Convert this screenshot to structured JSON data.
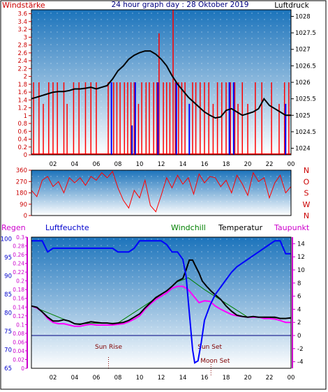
{
  "header": {
    "left_label": "Windstärke",
    "title": "24 hour graph day : 28 Oktober 2019",
    "right_label": "Luftdruck"
  },
  "colors": {
    "wind": "#ff0000",
    "wind_max": "#0000ff",
    "pressure": "#000000",
    "humidity": "#0000ff",
    "windchill": "#008000",
    "temperature": "#000000",
    "dewpoint": "#ff00ff",
    "rain": "#ff00ff",
    "freezing_line": "#000080",
    "sky_top": "#1b73bb",
    "sky_bottom": "#ffffff"
  },
  "chart_data": [
    {
      "type": "bar",
      "name": "wind-pressure",
      "left_axis_label": "Windstärke",
      "right_axis_label": "Luftdruck",
      "x_ticks": [
        "02",
        "04",
        "06",
        "08",
        "10",
        "12",
        "14",
        "16",
        "18",
        "20",
        "22",
        "00"
      ],
      "wind_ylim": [
        0,
        3.7
      ],
      "wind_ticks": [
        "0",
        "0.2",
        "0.4",
        "0.6",
        "0.8",
        "1",
        "1.2",
        "1.4",
        "1.6",
        "1.8",
        "2",
        "2.2",
        "2.4",
        "2.6",
        "2.8",
        "3",
        "3.2",
        "3.4",
        "3.6"
      ],
      "pressure_ylim": [
        1023.8,
        1028.2
      ],
      "pressure_ticks": [
        "1024",
        "1024.5",
        "1025",
        "1025.5",
        "1026",
        "1026.5",
        "1027",
        "1027.5",
        "1028"
      ],
      "pressure_series": {
        "hours": [
          0,
          0.5,
          1,
          1.5,
          2,
          2.5,
          3,
          3.5,
          4,
          4.5,
          5,
          5.5,
          6,
          6.5,
          7,
          7.5,
          8,
          8.5,
          9,
          9.5,
          10,
          10.5,
          11,
          11.5,
          12,
          12.5,
          13,
          13.5,
          14,
          14.5,
          15,
          15.5,
          16,
          16.5,
          17,
          17.5,
          18,
          18.5,
          19,
          19.5,
          20,
          20.5,
          21,
          21.5,
          22,
          22.5,
          23,
          23.5,
          24
        ],
        "values": [
          1025.5,
          1025.55,
          1025.6,
          1025.65,
          1025.7,
          1025.72,
          1025.72,
          1025.75,
          1025.8,
          1025.8,
          1025.82,
          1025.85,
          1025.8,
          1025.85,
          1025.9,
          1026.1,
          1026.35,
          1026.5,
          1026.7,
          1026.82,
          1026.9,
          1026.95,
          1026.95,
          1026.85,
          1026.7,
          1026.5,
          1026.2,
          1025.95,
          1025.75,
          1025.55,
          1025.4,
          1025.25,
          1025.1,
          1025.0,
          1024.92,
          1024.95,
          1025.15,
          1025.2,
          1025.1,
          1025.0,
          1025.05,
          1025.1,
          1025.2,
          1025.5,
          1025.3,
          1025.2,
          1025.1,
          1025.0,
          1025.0
        ]
      },
      "wind_spike_hours": [
        0.2,
        0.7,
        1.1,
        1.6,
        2.0,
        2.4,
        3.0,
        3.3,
        3.9,
        4.4,
        5.0,
        5.5,
        6.0,
        7.1,
        7.4,
        7.6,
        7.9,
        8.2,
        8.6,
        8.9,
        9.2,
        9.5,
        9.9,
        10.2,
        10.6,
        10.9,
        11.3,
        11.6,
        11.8,
        12.2,
        12.5,
        12.8,
        13.1,
        13.3,
        13.6,
        13.9,
        14.2,
        14.6,
        14.9,
        15.2,
        15.6,
        16.0,
        16.4,
        16.8,
        17.2,
        17.6,
        18.0,
        18.4,
        18.8,
        19.1,
        19.5,
        20.0,
        20.7,
        21.3,
        22.2,
        22.9,
        23.4,
        23.8
      ],
      "wind_spike_values": [
        1.85,
        1.85,
        1.3,
        1.85,
        1.85,
        1.85,
        1.85,
        1.3,
        1.85,
        1.85,
        1.85,
        1.85,
        1.85,
        1.85,
        1.3,
        1.85,
        1.85,
        1.85,
        1.85,
        1.85,
        1.85,
        1.85,
        1.3,
        1.85,
        1.85,
        1.85,
        1.85,
        1.85,
        3.1,
        1.85,
        1.85,
        1.85,
        3.7,
        1.85,
        1.85,
        1.85,
        1.85,
        1.3,
        1.85,
        1.85,
        1.85,
        1.85,
        1.85,
        1.3,
        1.85,
        1.85,
        1.85,
        1.85,
        1.85,
        1.3,
        1.85,
        1.3,
        1.85,
        1.85,
        1.85,
        1.3,
        1.85,
        1.85
      ],
      "wind_max_hours": [
        7.4,
        9.3,
        9.6,
        11.7,
        13.4,
        14.6,
        18.3,
        18.7,
        23.5
      ],
      "wind_max_values": [
        1.85,
        0.75,
        1.85,
        1.85,
        1.85,
        1.3,
        1.85,
        1.85,
        1.3
      ]
    },
    {
      "type": "line",
      "name": "wind-direction",
      "y_ticks": [
        "0",
        "90",
        "180",
        "270",
        "360"
      ],
      "ylim": [
        0,
        360
      ],
      "compass_labels": [
        "N",
        "W",
        "S",
        "O",
        "N"
      ],
      "hours": [
        0,
        0.5,
        1,
        1.5,
        2,
        2.5,
        3,
        3.5,
        4,
        4.5,
        5,
        5.5,
        6,
        6.5,
        7,
        7.5,
        8,
        8.5,
        9,
        9.5,
        10,
        10.5,
        11,
        11.5,
        12,
        12.5,
        13,
        13.5,
        14,
        14.5,
        15,
        15.5,
        16,
        16.5,
        17,
        17.5,
        18,
        18.5,
        19,
        19.5,
        20,
        20.5,
        21,
        21.5,
        22,
        22.5,
        23,
        23.5,
        24
      ],
      "values": [
        200,
        150,
        280,
        310,
        230,
        270,
        180,
        300,
        260,
        300,
        240,
        310,
        280,
        340,
        300,
        350,
        220,
        120,
        60,
        200,
        140,
        280,
        80,
        30,
        160,
        300,
        220,
        320,
        250,
        300,
        170,
        330,
        260,
        310,
        300,
        230,
        280,
        180,
        320,
        250,
        160,
        340,
        270,
        300,
        140,
        260,
        320,
        180,
        230
      ]
    },
    {
      "type": "line",
      "name": "temperature-humidity",
      "labels": {
        "rain": "Regen",
        "humidity": "Luftfeuchte",
        "windchill": "Windchill",
        "temperature": "Temperatur",
        "dewpoint": "Taupunkt"
      },
      "x_ticks": [
        "02",
        "04",
        "06",
        "08",
        "10",
        "12",
        "14",
        "16",
        "18",
        "20",
        "22",
        "00"
      ],
      "humidity_ylim": [
        65,
        100.5
      ],
      "humidity_ticks": [
        "65",
        "70",
        "75",
        "80",
        "85",
        "90",
        "95",
        "100"
      ],
      "rain_ylim": [
        0,
        0.3
      ],
      "rain_ticks": [
        "0",
        "0.02",
        "0.04",
        "0.06",
        "0.08",
        "0.1",
        "0.12",
        "0.14",
        "0.16",
        "0.18",
        "0.2",
        "0.22",
        "0.24",
        "0.26",
        "0.28",
        "0.3"
      ],
      "temp_ylim": [
        -5,
        15
      ],
      "temp_ticks": [
        "-4",
        "-2",
        "0",
        "2",
        "4",
        "6",
        "8",
        "10",
        "12",
        "14"
      ],
      "annotations": {
        "sun_rise": "Sun Rise",
        "sun_set": "Sun Set",
        "moon_set": "Moon Set",
        "moon_rise": "Moon Set"
      },
      "annotation_hours": {
        "sun_rise": 7.0,
        "sun_set": 16.3,
        "moon_set": 16.6
      },
      "humidity": {
        "hours": [
          0,
          0.5,
          1,
          1.5,
          2,
          3,
          4,
          5,
          6,
          7,
          7.5,
          8,
          9,
          9.5,
          10,
          11,
          12,
          12.5,
          13,
          13.5,
          14,
          14.3,
          14.6,
          14.9,
          15.1,
          15.4,
          15.7,
          16,
          16.5,
          17,
          17.5,
          18,
          18.5,
          19,
          19.5,
          20,
          21,
          22,
          22.5,
          23,
          23.5,
          24
        ],
        "values": [
          99.5,
          99.5,
          99.5,
          96.5,
          97.5,
          97.5,
          97.5,
          97.5,
          97.5,
          97.5,
          97.5,
          96.5,
          96.5,
          97.5,
          99.5,
          99.5,
          99.5,
          98.5,
          96.5,
          96.5,
          94.5,
          90,
          80,
          70,
          66.5,
          67,
          72,
          78,
          82,
          85,
          87,
          89,
          91,
          92.5,
          93.5,
          94.5,
          96.5,
          98.5,
          99.5,
          99.5,
          96,
          96
        ]
      },
      "temperature": {
        "hours": [
          0,
          0.5,
          1,
          1.5,
          2,
          2.5,
          3,
          3.5,
          4,
          4.5,
          5,
          5.5,
          6,
          6.5,
          7,
          7.5,
          8,
          8.5,
          9,
          9.5,
          10,
          10.5,
          11,
          11.5,
          12,
          12.5,
          13,
          13.5,
          14,
          14.3,
          14.6,
          14.9,
          15.2,
          15.5,
          15.8,
          16.2,
          16.6,
          17,
          17.5,
          18,
          18.5,
          19,
          19.5,
          20,
          20.5,
          21,
          21.5,
          22,
          22.5,
          23,
          23.5,
          24
        ],
        "values": [
          4.5,
          4.3,
          3.6,
          2.8,
          2.2,
          2.2,
          2.4,
          2.2,
          1.8,
          1.7,
          1.9,
          2.1,
          2.0,
          1.9,
          1.9,
          1.8,
          1.9,
          2.0,
          2.3,
          2.8,
          3.3,
          4.2,
          5.0,
          5.8,
          6.3,
          6.8,
          7.5,
          8.3,
          8.7,
          10.0,
          11.5,
          11.5,
          10.5,
          9.5,
          8.3,
          7.5,
          6.8,
          6.2,
          5.5,
          4.5,
          3.7,
          3.1,
          2.9,
          2.8,
          2.9,
          2.8,
          2.8,
          2.8,
          2.8,
          2.6,
          2.6,
          2.7
        ]
      },
      "dewpoint": {
        "hours": [
          0,
          0.5,
          1,
          1.5,
          2,
          2.5,
          3,
          3.5,
          4,
          4.5,
          5,
          5.5,
          6,
          6.5,
          7,
          7.5,
          8,
          8.5,
          9,
          9.5,
          10,
          10.5,
          11,
          11.5,
          12,
          12.5,
          13,
          13.5,
          14,
          14.5,
          15,
          15.5,
          16,
          16.5,
          17,
          17.5,
          18,
          18.5,
          19,
          19.5,
          20,
          20.5,
          21,
          21.5,
          22,
          22.5,
          23,
          23.5,
          24
        ],
        "values": [
          4.5,
          4.2,
          3.6,
          2.6,
          2.0,
          1.8,
          1.8,
          1.6,
          1.4,
          1.4,
          1.6,
          1.7,
          1.6,
          1.6,
          1.6,
          1.6,
          1.7,
          1.8,
          2.1,
          2.5,
          3.0,
          4.0,
          4.8,
          5.5,
          6.0,
          6.5,
          7.2,
          7.5,
          7.5,
          7.0,
          6.0,
          5.0,
          5.3,
          5.2,
          4.5,
          4.0,
          3.6,
          3.2,
          3.0,
          2.9,
          2.8,
          2.8,
          2.8,
          2.6,
          2.6,
          2.5,
          2.3,
          2.0,
          2.0
        ]
      },
      "windchill": {
        "hours": [
          0,
          4,
          8,
          12,
          13.5,
          14.5,
          16,
          20,
          24
        ],
        "values": [
          4.5,
          1.8,
          1.9,
          6.2,
          8.2,
          8.8,
          7.0,
          2.8,
          2.6
        ]
      }
    }
  ]
}
